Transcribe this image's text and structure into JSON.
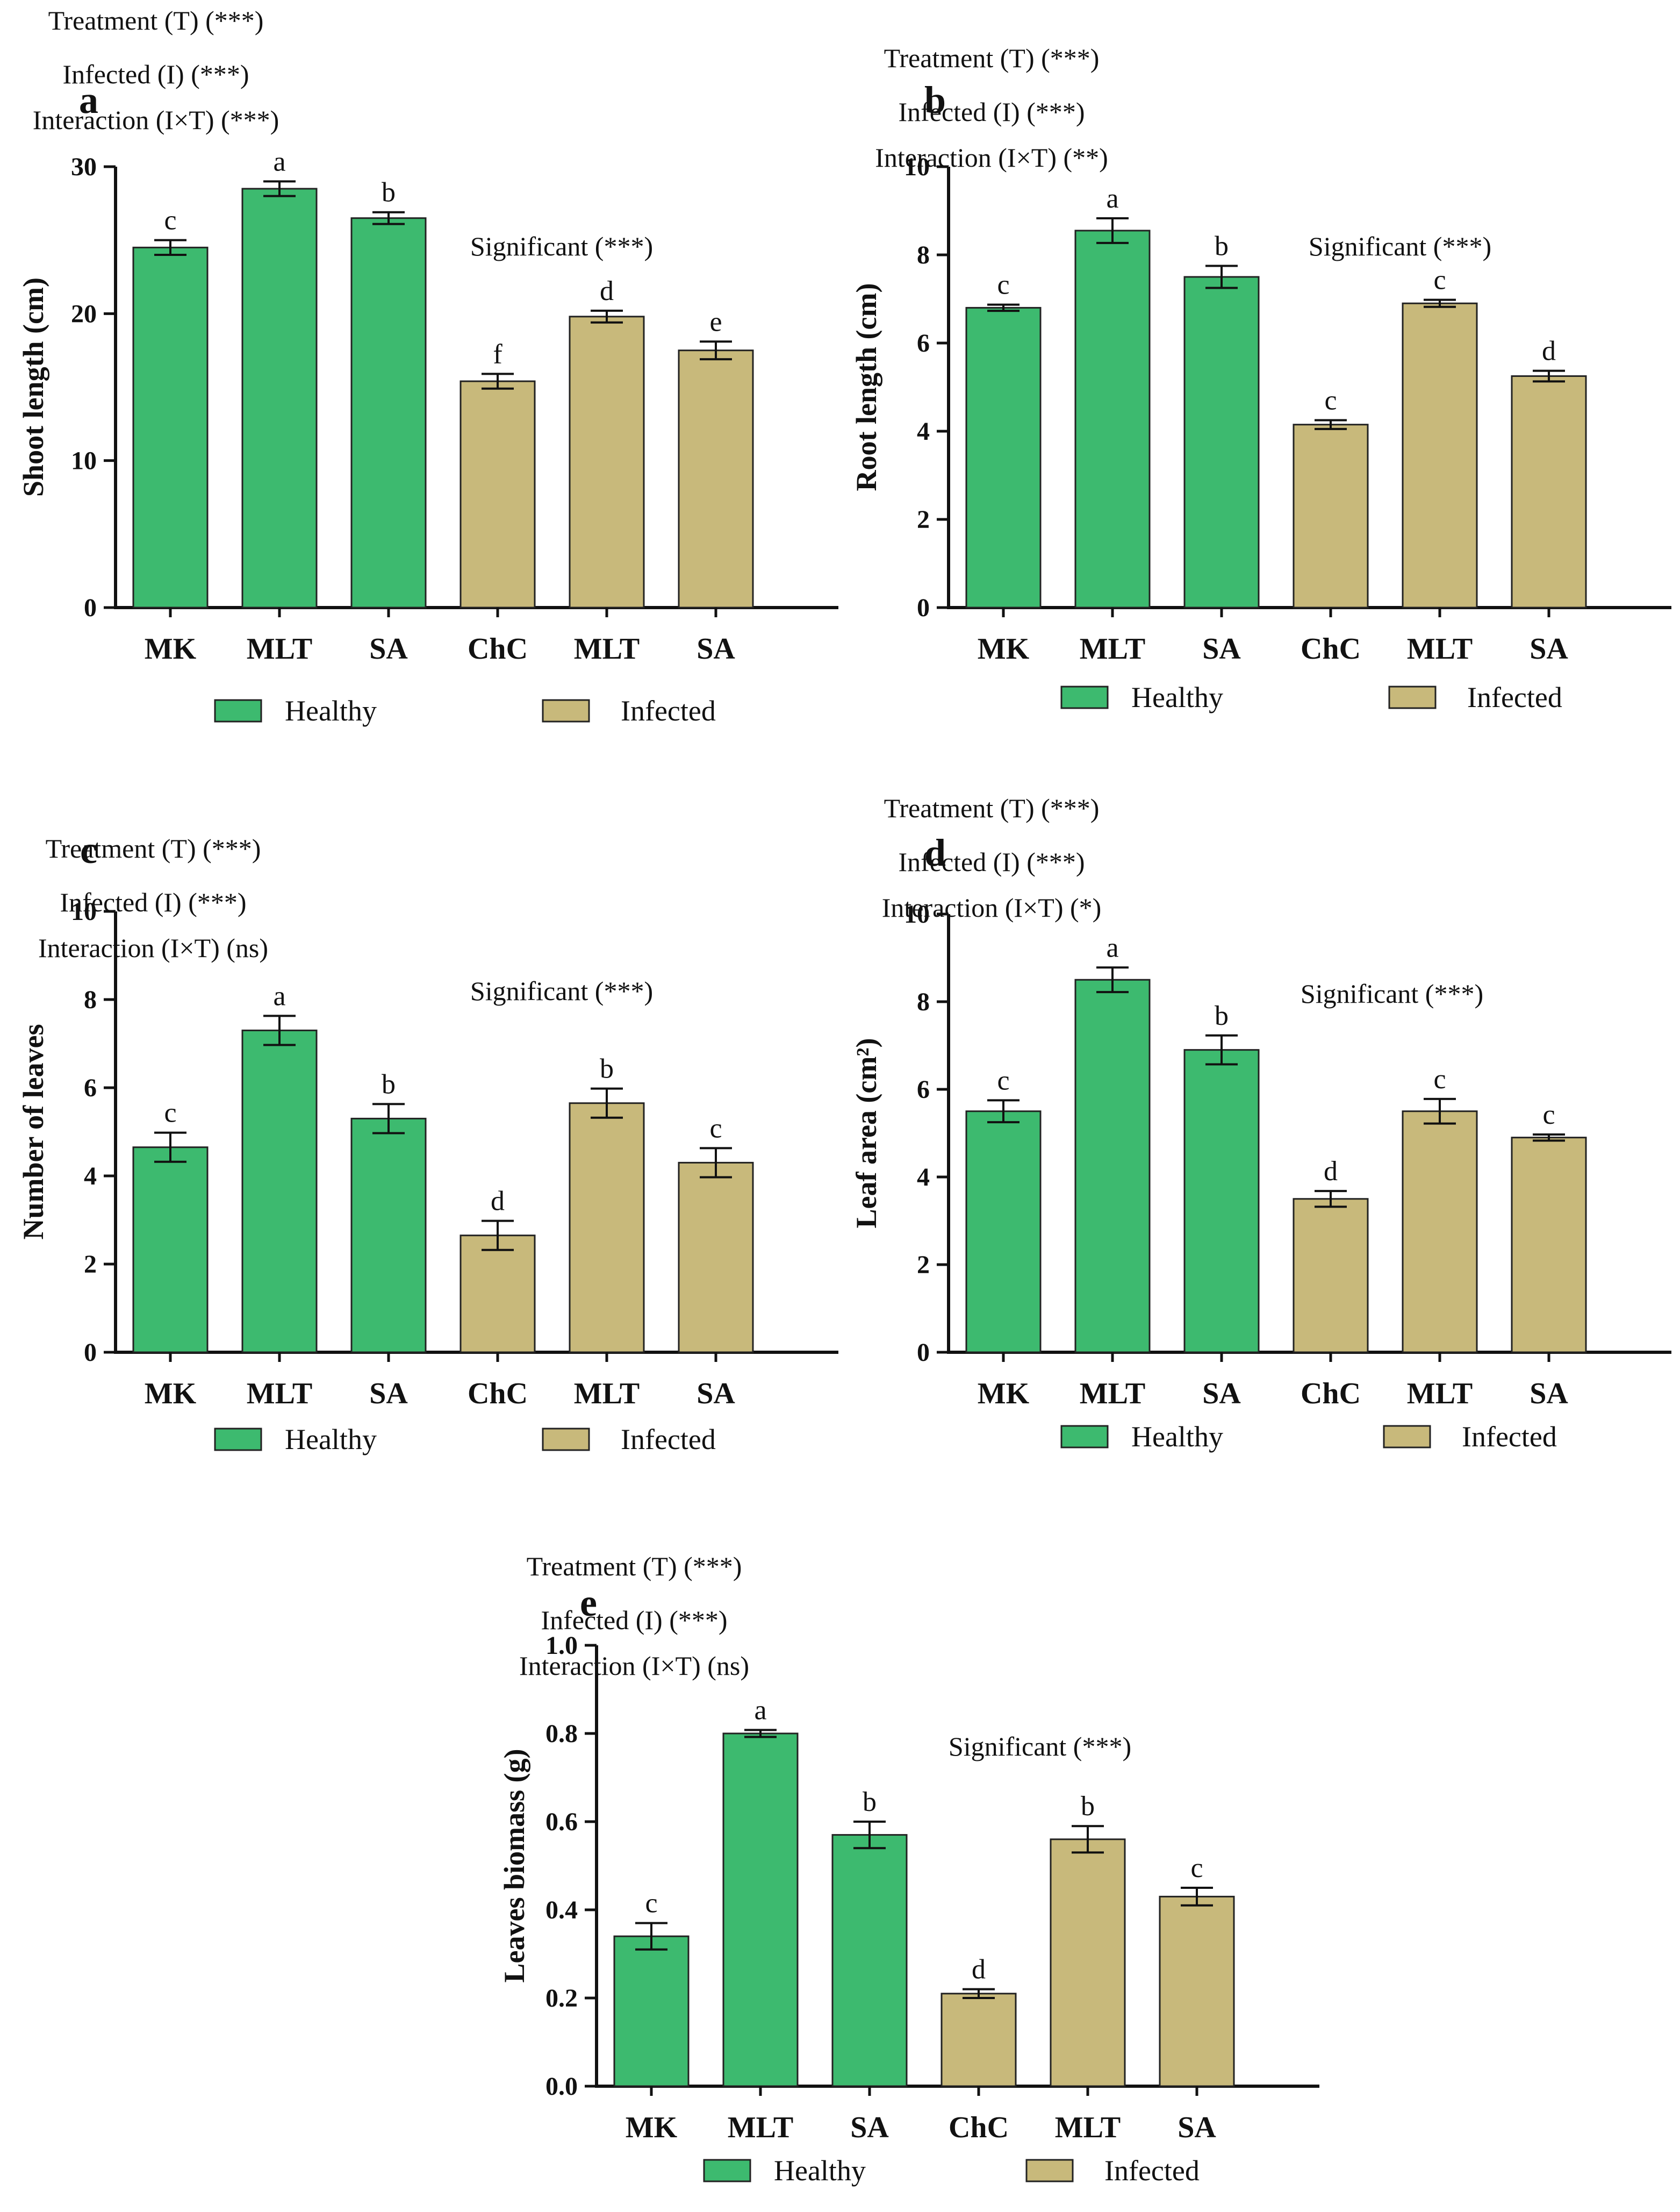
{
  "colors": {
    "healthy": "#3dba6f",
    "infected": "#c8b97b",
    "axis": "#111111"
  },
  "legend": {
    "healthy": "Healthy",
    "infected": "Infected"
  },
  "chart_data": [
    {
      "id": "a",
      "type": "bar",
      "panel_label": "a",
      "ylabel": "Shoot length (cm)",
      "ylim": [
        0,
        30
      ],
      "yticks": [
        0,
        10,
        20,
        30
      ],
      "categories": [
        "MK",
        "MLT",
        "SA",
        "ChC",
        "MLT",
        "SA"
      ],
      "groups": [
        "healthy",
        "healthy",
        "healthy",
        "infected",
        "infected",
        "infected"
      ],
      "values": [
        24.5,
        28.5,
        26.5,
        15.4,
        19.8,
        17.5
      ],
      "errors": [
        0.5,
        0.5,
        0.4,
        0.5,
        0.4,
        0.6
      ],
      "letters": [
        "c",
        "a",
        "b",
        "f",
        "d",
        "e"
      ],
      "annotations": [
        "Treatment (T) (***)",
        "Infected (I) (***)",
        "Interaction (I×T) (***)"
      ],
      "significance": "Significant (***)"
    },
    {
      "id": "b",
      "type": "bar",
      "panel_label": "b",
      "ylabel": "Root length (cm)",
      "ylim": [
        0,
        10
      ],
      "yticks": [
        0,
        2,
        4,
        6,
        8,
        10
      ],
      "categories": [
        "MK",
        "MLT",
        "SA",
        "ChC",
        "MLT",
        "SA"
      ],
      "groups": [
        "healthy",
        "healthy",
        "healthy",
        "infected",
        "infected",
        "infected"
      ],
      "values": [
        6.8,
        8.55,
        7.5,
        4.15,
        6.9,
        5.25
      ],
      "errors": [
        0.07,
        0.28,
        0.25,
        0.1,
        0.08,
        0.12
      ],
      "letters": [
        "c",
        "a",
        "b",
        "c",
        "c",
        "d"
      ],
      "annotations": [
        "Treatment (T) (***)",
        "Infected (I) (***)",
        "Interaction (I×T) (**)"
      ],
      "significance": "Significant (***)"
    },
    {
      "id": "c",
      "type": "bar",
      "panel_label": "c",
      "ylabel": "Number of leaves",
      "ylim": [
        0,
        10
      ],
      "yticks": [
        0,
        2,
        4,
        6,
        8,
        10
      ],
      "categories": [
        "MK",
        "MLT",
        "SA",
        "ChC",
        "MLT",
        "SA"
      ],
      "groups": [
        "healthy",
        "healthy",
        "healthy",
        "infected",
        "infected",
        "infected"
      ],
      "values": [
        4.65,
        7.3,
        5.3,
        2.65,
        5.65,
        4.3
      ],
      "errors": [
        0.33,
        0.33,
        0.33,
        0.33,
        0.33,
        0.33
      ],
      "letters": [
        "c",
        "a",
        "b",
        "d",
        "b",
        "c"
      ],
      "annotations": [
        "Treatment (T) (***)",
        "Infected (I) (***)",
        "Interaction (I×T) (ns)"
      ],
      "significance": "Significant (***)"
    },
    {
      "id": "d",
      "type": "bar",
      "panel_label": "d",
      "ylabel": "Leaf area (cm²)",
      "ylim": [
        0,
        10
      ],
      "yticks": [
        0,
        2,
        4,
        6,
        8,
        10
      ],
      "categories": [
        "MK",
        "MLT",
        "SA",
        "ChC",
        "MLT",
        "SA"
      ],
      "groups": [
        "healthy",
        "healthy",
        "healthy",
        "infected",
        "infected",
        "infected"
      ],
      "values": [
        5.5,
        8.5,
        6.9,
        3.5,
        5.5,
        4.9
      ],
      "errors": [
        0.25,
        0.28,
        0.33,
        0.18,
        0.28,
        0.07
      ],
      "letters": [
        "c",
        "a",
        "b",
        "d",
        "c",
        "c"
      ],
      "annotations": [
        "Treatment (T) (***)",
        "Infected (I) (***)",
        "Interaction (I×T) (*)"
      ],
      "significance": "Significant (***)"
    },
    {
      "id": "e",
      "type": "bar",
      "panel_label": "e",
      "ylabel": "Leaves biomass (g)",
      "ylim": [
        0,
        1.0
      ],
      "yticks": [
        0.0,
        0.2,
        0.4,
        0.6,
        0.8,
        1.0
      ],
      "categories": [
        "MK",
        "MLT",
        "SA",
        "ChC",
        "MLT",
        "SA"
      ],
      "groups": [
        "healthy",
        "healthy",
        "healthy",
        "infected",
        "infected",
        "infected"
      ],
      "values": [
        0.34,
        0.8,
        0.57,
        0.21,
        0.56,
        0.43
      ],
      "errors": [
        0.03,
        0.008,
        0.03,
        0.01,
        0.03,
        0.02
      ],
      "letters": [
        "c",
        "a",
        "b",
        "d",
        "b",
        "c"
      ],
      "annotations": [
        "Treatment (T) (***)",
        "Infected (I) (***)",
        "Interaction (I×T) (ns)"
      ],
      "significance": "Significant (***)"
    }
  ]
}
